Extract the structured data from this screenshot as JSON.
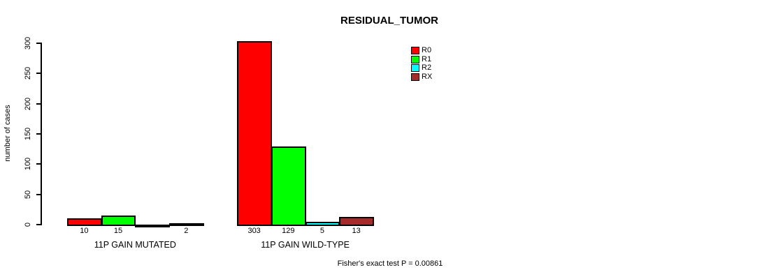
{
  "chart_data": {
    "type": "bar",
    "title": "RESIDUAL_TUMOR",
    "ylabel": "number of cases",
    "ylim": [
      0,
      300
    ],
    "yticks": [
      0,
      50,
      100,
      150,
      200,
      250,
      300
    ],
    "categories": [
      "11P GAIN MUTATED",
      "11P GAIN WILD-TYPE"
    ],
    "series": [
      {
        "name": "R0",
        "color": "#FF0000",
        "values": [
          10,
          303
        ]
      },
      {
        "name": "R1",
        "color": "#00FF00",
        "values": [
          15,
          129
        ]
      },
      {
        "name": "R2",
        "color": "#00FFFF",
        "values": [
          0,
          5
        ]
      },
      {
        "name": "RX",
        "color": "#A52A2A",
        "values": [
          2,
          13
        ]
      }
    ],
    "bar_value_labels": [
      [
        "10",
        "15",
        "",
        "2"
      ],
      [
        "303",
        "129",
        "5",
        "13"
      ]
    ],
    "legend": {
      "position": "top-right",
      "entries": [
        "R0",
        "R1",
        "R2",
        "RX"
      ]
    },
    "footnote": "Fisher's exact test P = 0.00861",
    "grid": false,
    "background": "#FFFFFF",
    "axis_color": "#000000"
  }
}
